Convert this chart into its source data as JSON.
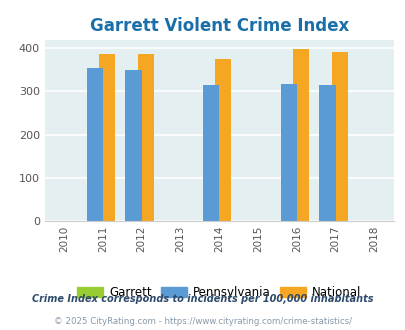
{
  "title": "Garrett Violent Crime Index",
  "title_color": "#1a6fa8",
  "years": [
    2011,
    2012,
    2014,
    2016,
    2017
  ],
  "x_ticks": [
    2010,
    2011,
    2012,
    2013,
    2014,
    2015,
    2016,
    2017,
    2018
  ],
  "garrett": [
    0,
    0,
    0,
    0,
    0
  ],
  "pennsylvania": [
    355,
    350,
    314,
    317,
    314
  ],
  "national": [
    386,
    386,
    376,
    398,
    392
  ],
  "garrett_color": "#99cc33",
  "pennsylvania_color": "#5b9bd5",
  "national_color": "#f5a623",
  "bg_color": "#e4eff2",
  "ylim": [
    0,
    420
  ],
  "yticks": [
    0,
    100,
    200,
    300,
    400
  ],
  "bar_width": 0.42,
  "legend_labels": [
    "Garrett",
    "Pennsylvania",
    "National"
  ],
  "footnote1": "Crime Index corresponds to incidents per 100,000 inhabitants",
  "footnote2": "© 2025 CityRating.com - https://www.cityrating.com/crime-statistics/",
  "footnote1_color": "#2e4a6b",
  "footnote2_color": "#8899aa",
  "tick_color": "#555555",
  "grid_color": "#ffffff",
  "spine_color": "#cccccc"
}
